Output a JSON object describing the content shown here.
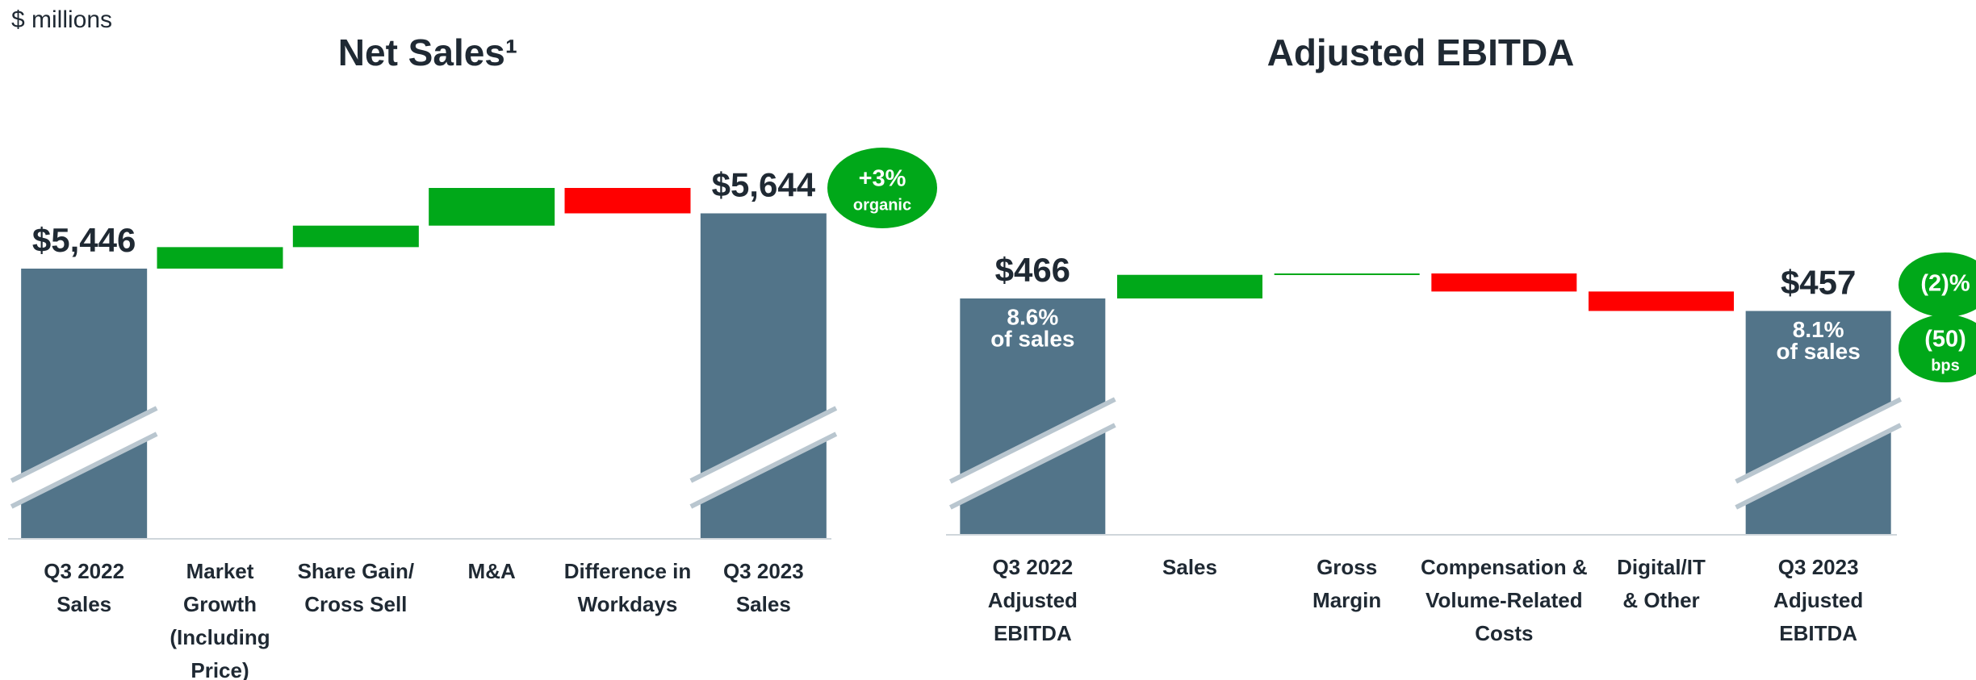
{
  "unit_note": "$ millions",
  "chart_data": [
    {
      "type": "waterfall",
      "title": "Net Sales¹",
      "categories": [
        "Q3 2022\nSales",
        "Market\nGrowth\n(Including\nPrice)",
        "Share Gain/\nCross Sell",
        "M&A",
        "Difference in\nWorkdays",
        "Q3 2023\nSales"
      ],
      "measure": [
        "absolute",
        "relative",
        "relative",
        "relative",
        "relative",
        "total"
      ],
      "values": [
        5446,
        77,
        77,
        135,
        -91,
        5644
      ],
      "value_labels": [
        "$5,446",
        null,
        null,
        null,
        null,
        "$5,644"
      ],
      "inner_labels": [
        null,
        null,
        null,
        null,
        null,
        null
      ],
      "colors": {
        "total": "#527489",
        "increase": "#00a819",
        "decrease": "#ff0000"
      },
      "badges": [
        [
          "+3%",
          "organic"
        ]
      ]
    },
    {
      "type": "waterfall",
      "title": "Adjusted EBITDA",
      "categories": [
        "Q3 2022\nAdjusted\nEBITDA",
        "Sales",
        "Gross\nMargin",
        "Compensation &\nVolume-Related\nCosts",
        "Digital/IT\n& Other",
        "Q3 2023\nAdjusted\nEBITDA"
      ],
      "measure": [
        "absolute",
        "relative",
        "relative",
        "relative",
        "relative",
        "total"
      ],
      "values": [
        466,
        17,
        1,
        -13,
        -14,
        457
      ],
      "value_labels": [
        "$466",
        null,
        null,
        null,
        null,
        "$457"
      ],
      "inner_labels": [
        [
          "8.6%",
          "of sales"
        ],
        null,
        null,
        null,
        null,
        [
          "8.1%",
          "of sales"
        ]
      ],
      "colors": {
        "total": "#527489",
        "increase": "#00a819",
        "decrease": "#ff0000"
      },
      "badges": [
        [
          "(2)%"
        ],
        [
          "(50)",
          "bps"
        ]
      ]
    }
  ]
}
